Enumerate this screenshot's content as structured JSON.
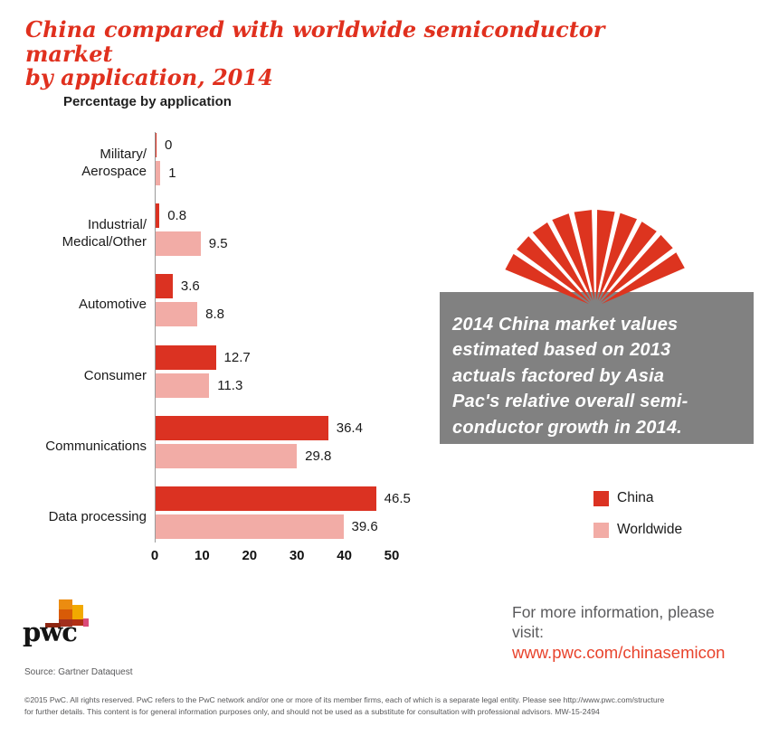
{
  "title": "China compared with worldwide semiconductor market\nby application, 2014",
  "chart_heading": "Percentage by application",
  "chart_data": {
    "type": "bar",
    "orientation": "horizontal",
    "title": "Percentage by application",
    "categories": [
      "Military/\nAerospace",
      "Industrial/\nMedical/Other",
      "Automotive",
      "Consumer",
      "Communications",
      "Data processing"
    ],
    "series": [
      {
        "name": "China",
        "color": "#db3222",
        "values": [
          0,
          0.8,
          3.6,
          12.7,
          36.4,
          46.5
        ]
      },
      {
        "name": "Worldwide",
        "color": "#f2aca6",
        "values": [
          1,
          9.5,
          8.8,
          11.3,
          29.8,
          39.6
        ]
      }
    ],
    "xticks": [
      0,
      10,
      20,
      30,
      40,
      50
    ],
    "xlim": [
      0,
      50
    ],
    "xlabel": "",
    "ylabel": "",
    "grid": false,
    "legend_position": "right-bottom",
    "value_labels": true
  },
  "annotation": {
    "text": "2014 China market values\nestimated based on 2013\nactuals factored by Asia\nPac's relative overall semi-\nconductor growth in 2014.",
    "background": "#818181",
    "fan_color": "#dd341f"
  },
  "legend": {
    "items": [
      {
        "label": "China",
        "color": "#db3222"
      },
      {
        "label": "Worldwide",
        "color": "#f2aca6"
      }
    ]
  },
  "info": {
    "line1": "For more information, please visit:",
    "link": "www.pwc.com/chinasemicon"
  },
  "logo": {
    "wordmark": "pwc"
  },
  "source": "Source: Gartner Dataquest",
  "footer": "©2015 PwC. All rights reserved. PwC refers to the PwC network and/or one or more of its member firms, each of which is a separate legal entity. Please see http://www.pwc.com/structure\nfor further details. This content is for general information purposes only, and should not be used as a substitute for consultation with professional advisors. MW-15-2494",
  "colors": {
    "accent_red": "#e0301e",
    "link_red": "#e8432c",
    "annotation_gray": "#818181",
    "axis_gray": "#9a9a9a"
  }
}
